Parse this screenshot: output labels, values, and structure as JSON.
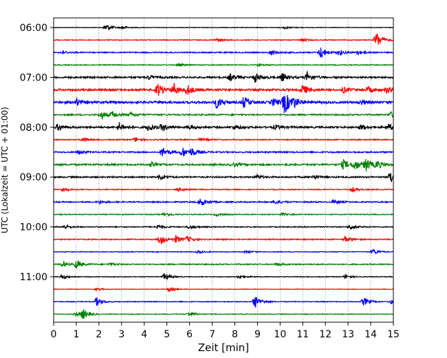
{
  "chart_data": {
    "type": "line",
    "xlabel": "Zeit  [min]",
    "ylabel": "UTC (Lokalzeit = UTC + 01:00)",
    "xlim": [
      0,
      15
    ],
    "x_ticks": [
      0,
      1,
      2,
      3,
      4,
      5,
      6,
      7,
      8,
      9,
      10,
      11,
      12,
      13,
      14,
      15
    ],
    "y_tick_labels": [
      "06:00",
      "07:00",
      "08:00",
      "09:00",
      "10:00",
      "11:00"
    ],
    "trace_start_times": [
      "06:00",
      "06:15",
      "06:30",
      "06:45",
      "07:00",
      "07:15",
      "07:30",
      "07:45",
      "08:00",
      "08:15",
      "08:30",
      "08:45",
      "09:00",
      "09:15",
      "09:30",
      "09:45",
      "10:00",
      "10:15",
      "10:30",
      "10:45",
      "11:00",
      "11:15",
      "11:30",
      "11:45"
    ],
    "trace_colors": [
      "#000000",
      "#ff0000",
      "#0000ff",
      "#008000"
    ],
    "grid": "vertical dotted at each minute",
    "traces": [
      {
        "events": [
          [
            2.3,
            6
          ],
          [
            3.1,
            2
          ],
          [
            10.2,
            2
          ]
        ],
        "noise": 0.4
      },
      {
        "events": [
          [
            14.25,
            12
          ],
          [
            7.2,
            2
          ],
          [
            11.0,
            2
          ]
        ],
        "noise": 0.6
      },
      {
        "events": [
          [
            9.6,
            4
          ],
          [
            11.8,
            8
          ],
          [
            12.6,
            4
          ],
          [
            13.4,
            3
          ],
          [
            0.4,
            2
          ]
        ],
        "noise": 0.8
      },
      {
        "events": [
          [
            5.5,
            2
          ],
          [
            9.0,
            2
          ]
        ],
        "noise": 0.6
      },
      {
        "events": [
          [
            7.8,
            5
          ],
          [
            8.9,
            7
          ],
          [
            10.1,
            6
          ],
          [
            11.2,
            7
          ],
          [
            4.2,
            3
          ]
        ],
        "noise": 1.2
      },
      {
        "events": [
          [
            4.6,
            9
          ],
          [
            5.3,
            8
          ],
          [
            5.9,
            7
          ],
          [
            11.0,
            7
          ],
          [
            12.8,
            4
          ],
          [
            13.9,
            4
          ],
          [
            14.7,
            4
          ]
        ],
        "noise": 1.5
      },
      {
        "events": [
          [
            1.0,
            5
          ],
          [
            7.2,
            8
          ],
          [
            8.4,
            8
          ],
          [
            9.7,
            5
          ],
          [
            10.2,
            16
          ],
          [
            10.6,
            6
          ],
          [
            13.6,
            3
          ]
        ],
        "noise": 1.6
      },
      {
        "events": [
          [
            2.1,
            6
          ],
          [
            2.6,
            4
          ],
          [
            3.4,
            3
          ],
          [
            14.9,
            4
          ]
        ],
        "noise": 1.0
      },
      {
        "events": [
          [
            0.2,
            5
          ],
          [
            2.9,
            6
          ],
          [
            4.2,
            5
          ],
          [
            4.8,
            5
          ],
          [
            6.0,
            3
          ],
          [
            8.0,
            3
          ],
          [
            9.8,
            3
          ],
          [
            13.6,
            4
          ],
          [
            14.8,
            4
          ]
        ],
        "noise": 1.3
      },
      {
        "events": [
          [
            1.3,
            3
          ],
          [
            3.6,
            3
          ],
          [
            6.5,
            2
          ]
        ],
        "noise": 0.8
      },
      {
        "events": [
          [
            4.8,
            7
          ],
          [
            5.7,
            7
          ],
          [
            6.1,
            5
          ],
          [
            1.1,
            3
          ]
        ],
        "noise": 1.0
      },
      {
        "events": [
          [
            12.8,
            7
          ],
          [
            13.3,
            7
          ],
          [
            13.8,
            9
          ],
          [
            14.3,
            5
          ],
          [
            4.3,
            3
          ],
          [
            7.9,
            3
          ]
        ],
        "noise": 1.2
      },
      {
        "events": [
          [
            14.9,
            10
          ],
          [
            4.7,
            4
          ],
          [
            9.0,
            3
          ],
          [
            11.5,
            3
          ]
        ],
        "noise": 1.0
      },
      {
        "events": [
          [
            0.4,
            3
          ],
          [
            5.5,
            3
          ],
          [
            13.2,
            3
          ]
        ],
        "noise": 0.7
      },
      {
        "events": [
          [
            6.5,
            6
          ],
          [
            9.8,
            3
          ],
          [
            12.4,
            3
          ],
          [
            2.0,
            2
          ]
        ],
        "noise": 0.9
      },
      {
        "events": [
          [
            4.9,
            3
          ],
          [
            7.2,
            2
          ],
          [
            10.1,
            2
          ]
        ],
        "noise": 0.6
      },
      {
        "events": [
          [
            0.5,
            3
          ],
          [
            4.6,
            3
          ],
          [
            13.1,
            4
          ],
          [
            6.0,
            3
          ]
        ],
        "noise": 0.7
      },
      {
        "events": [
          [
            4.7,
            7
          ],
          [
            5.4,
            5
          ],
          [
            5.9,
            4
          ],
          [
            12.9,
            4
          ]
        ],
        "noise": 0.8
      },
      {
        "events": [
          [
            6.4,
            2
          ],
          [
            14.1,
            4
          ],
          [
            8.5,
            2
          ]
        ],
        "noise": 0.5
      },
      {
        "events": [
          [
            1.0,
            6
          ],
          [
            0.4,
            4
          ],
          [
            9.9,
            2
          ],
          [
            2.5,
            2
          ]
        ],
        "noise": 0.8
      },
      {
        "events": [
          [
            4.9,
            5
          ],
          [
            0.4,
            3
          ],
          [
            8.2,
            3
          ],
          [
            12.9,
            3
          ]
        ],
        "noise": 0.5
      },
      {
        "events": [
          [
            5.1,
            3
          ],
          [
            1.9,
            2
          ]
        ],
        "noise": 0.4
      },
      {
        "events": [
          [
            1.9,
            6
          ],
          [
            8.9,
            9
          ],
          [
            13.7,
            6
          ],
          [
            14.9,
            3
          ]
        ],
        "noise": 0.6
      },
      {
        "events": [
          [
            1.3,
            7
          ],
          [
            6.0,
            4
          ],
          [
            1.0,
            3
          ]
        ],
        "noise": 0.5
      }
    ]
  }
}
